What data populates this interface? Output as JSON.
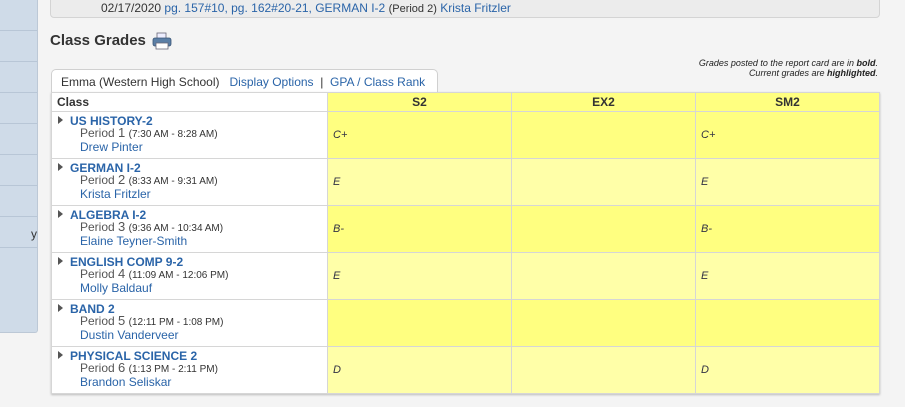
{
  "top_note": {
    "date": "02/17/2020",
    "assignment": "pg. 157#10, pg. 162#20-21,",
    "course": "GERMAN I-2",
    "period": "(Period 2)",
    "teacher": "Krista Fritzler"
  },
  "sidebar": {
    "items": [
      "",
      "",
      "",
      "",
      "",
      "",
      "",
      "y",
      ""
    ]
  },
  "title": "Class Grades",
  "legend": {
    "line1_prefix": "Grades posted to the report card are in ",
    "line1_bold": "bold",
    "line2_prefix": "Current grades are ",
    "line2_bold": "highlighted",
    "period": "."
  },
  "tabs": {
    "student": "Emma (Western High School)",
    "display_options": "Display Options",
    "separator": "|",
    "gpa": "GPA / Class Rank"
  },
  "columns": [
    "Class",
    "S2",
    "EX2",
    "SM2"
  ],
  "rows": [
    {
      "course": "US HISTORY-2",
      "period_label": "Period",
      "period": "1",
      "time": "(7:30 AM - 8:28 AM)",
      "teacher": "Drew Pinter",
      "grades": [
        "C+",
        "",
        "C+"
      ]
    },
    {
      "course": "GERMAN I-2",
      "period_label": "Period",
      "period": "2",
      "time": "(8:33 AM - 9:31 AM)",
      "teacher": "Krista Fritzler",
      "grades": [
        "E",
        "",
        "E"
      ]
    },
    {
      "course": "ALGEBRA I-2",
      "period_label": "Period",
      "period": "3",
      "time": "(9:36 AM - 10:34 AM)",
      "teacher": "Elaine Teyner-Smith",
      "grades": [
        "B-",
        "",
        "B-"
      ]
    },
    {
      "course": "ENGLISH COMP 9-2",
      "period_label": "Period",
      "period": "4",
      "time": "(11:09 AM - 12:06 PM)",
      "teacher": "Molly Baldauf",
      "grades": [
        "E",
        "",
        "E"
      ]
    },
    {
      "course": "BAND 2",
      "period_label": "Period",
      "period": "5",
      "time": "(12:11 PM - 1:08 PM)",
      "teacher": "Dustin Vanderveer",
      "grades": [
        "",
        "",
        ""
      ]
    },
    {
      "course": "PHYSICAL SCIENCE 2",
      "period_label": "Period",
      "period": "6",
      "time": "(1:13 PM - 2:11 PM)",
      "teacher": "Brandon Seliskar",
      "grades": [
        "D",
        "",
        "D"
      ]
    }
  ],
  "colors": {
    "highlight": "#ffff80",
    "highlight_alt": "#ffffa8",
    "link": "#2a64a8"
  }
}
